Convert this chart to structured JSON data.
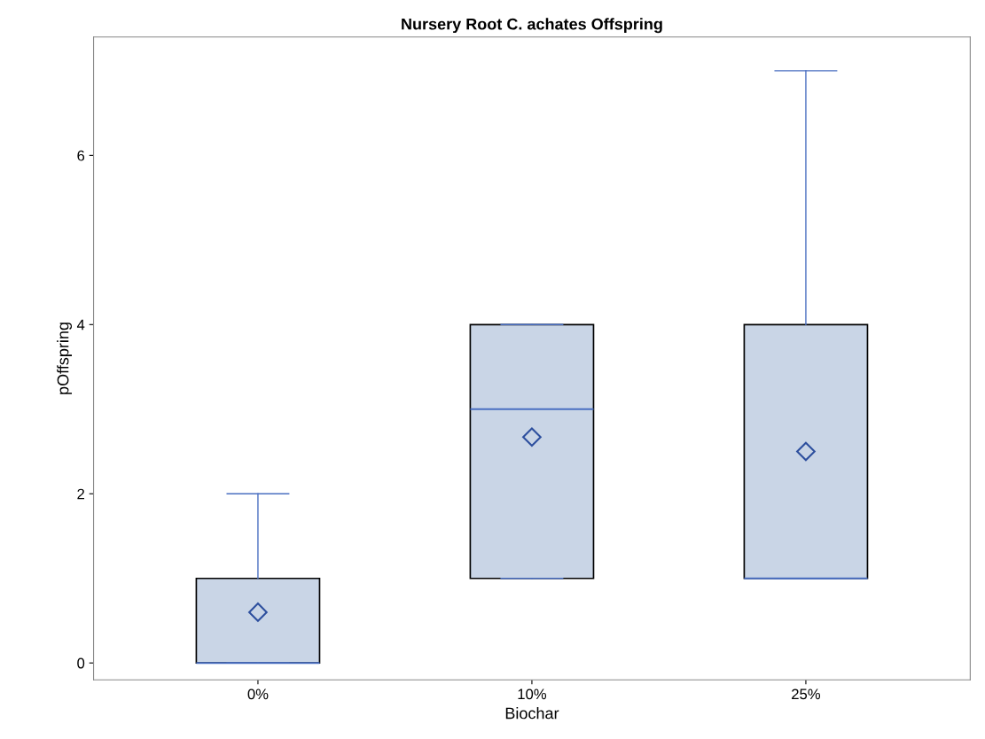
{
  "chart_data": {
    "type": "box",
    "title": "Nursery Root C. achates Offspring",
    "xlabel": "Biochar",
    "ylabel": "pOffspring",
    "categories": [
      "0%",
      "10%",
      "25%"
    ],
    "boxes": [
      {
        "low": 0,
        "q1": 0,
        "median": 0,
        "q3": 1,
        "high": 2,
        "mean": 0.6
      },
      {
        "low": 1,
        "q1": 1,
        "median": 3,
        "q3": 4,
        "high": 4,
        "mean": 2.67
      },
      {
        "low": 1,
        "q1": 1,
        "median": 1,
        "q3": 4,
        "high": 7,
        "mean": 2.5
      }
    ],
    "color": "#c9d5e6",
    "ylim": [
      -0.2,
      7.4
    ],
    "yticks": [
      0,
      2,
      4,
      6
    ],
    "grid": false,
    "marker": "diamond"
  }
}
